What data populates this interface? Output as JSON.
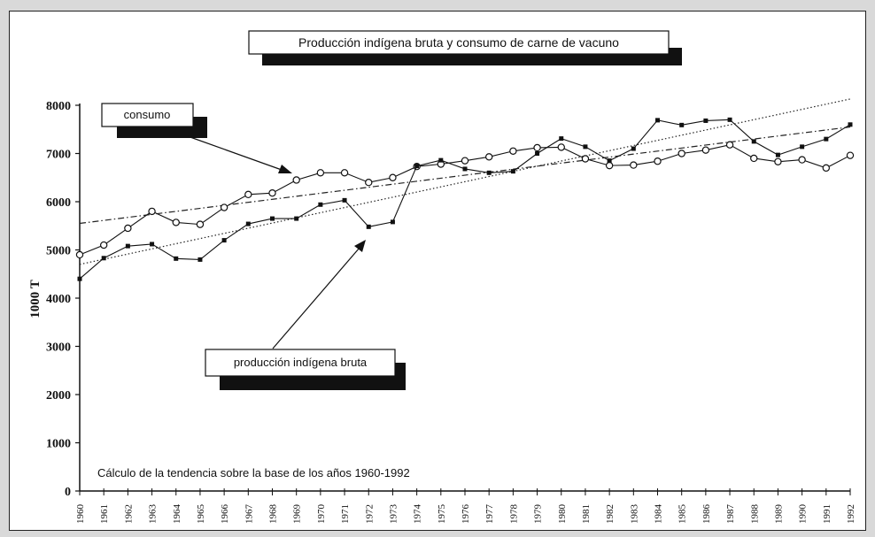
{
  "chart_data": {
    "type": "line",
    "title": "Producción indígena bruta y consumo de carne de vacuno",
    "ylabel": "1000 T",
    "xlabel": "",
    "ylim": [
      0,
      8000
    ],
    "yticks": [
      0,
      1000,
      2000,
      3000,
      4000,
      5000,
      6000,
      7000,
      8000
    ],
    "categories": [
      "1960",
      "1961",
      "1962",
      "1963",
      "1964",
      "1965",
      "1966",
      "1967",
      "1968",
      "1969",
      "1970",
      "1971",
      "1972",
      "1973",
      "1974",
      "1975",
      "1976",
      "1977",
      "1978",
      "1979",
      "1980",
      "1981",
      "1982",
      "1983",
      "1984",
      "1985",
      "1986",
      "1987",
      "1988",
      "1989",
      "1990",
      "1991",
      "1992"
    ],
    "series": [
      {
        "name": "consumo",
        "marker": "open-circle",
        "values": [
          4900,
          5100,
          5450,
          5800,
          5570,
          5530,
          5880,
          6150,
          6180,
          6450,
          6600,
          6600,
          6400,
          6500,
          6730,
          6780,
          6850,
          6930,
          7050,
          7120,
          7130,
          6890,
          6750,
          6760,
          6840,
          7000,
          7070,
          7180,
          6900,
          6830,
          6870,
          6700,
          6960
        ],
        "trend": {
          "start": 5550,
          "end": 7550,
          "style": "dash-dot"
        }
      },
      {
        "name": "producción indígena bruta",
        "marker": "filled-square",
        "values": [
          4400,
          4830,
          5080,
          5120,
          4820,
          4800,
          5200,
          5540,
          5650,
          5650,
          5940,
          6030,
          5480,
          5580,
          6740,
          6860,
          6680,
          6600,
          6630,
          7000,
          7310,
          7140,
          6850,
          7100,
          7690,
          7590,
          7680,
          7700,
          7250,
          6970,
          7140,
          7300,
          7600
        ],
        "trend": {
          "start": 4700,
          "end": 8130,
          "style": "dotted"
        }
      }
    ],
    "annotations": {
      "consumo": "consumo",
      "produccion": "producción indígena bruta",
      "footnote": "Cálculo de la tendencia sobre la base de los años 1960-1992"
    },
    "grid": false,
    "legend": "callout labels with arrows"
  }
}
